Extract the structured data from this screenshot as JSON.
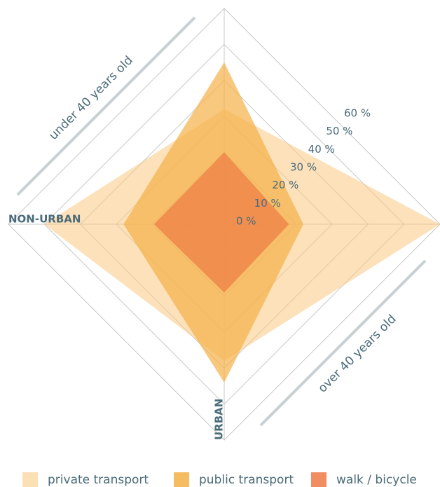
{
  "chart_data": {
    "type": "radar",
    "categories": [
      null,
      null,
      "URBAN",
      "NON-URBAN"
    ],
    "annotations": [
      "under 40 years old",
      "over 40 years old"
    ],
    "ylim": [
      0,
      60
    ],
    "yticks": [
      {
        "value": 0,
        "label": "0 %"
      },
      {
        "value": 10,
        "label": "10 %"
      },
      {
        "value": 20,
        "label": "20 %"
      },
      {
        "value": 30,
        "label": "30 %"
      },
      {
        "value": 40,
        "label": "40 %"
      },
      {
        "value": 50,
        "label": "50 %"
      },
      {
        "value": 60,
        "label": "60 %"
      }
    ],
    "series": [
      {
        "name": "private transport",
        "color": "#f9c983",
        "values": [
          32,
          60,
          38,
          50
        ]
      },
      {
        "name": "public transport",
        "color": "#f5b047",
        "values": [
          45,
          22,
          44,
          28
        ]
      },
      {
        "name": "walk / bicycle",
        "color": "#ee7a45",
        "values": [
          20,
          18,
          19,
          19.5
        ]
      }
    ],
    "grid": true
  }
}
